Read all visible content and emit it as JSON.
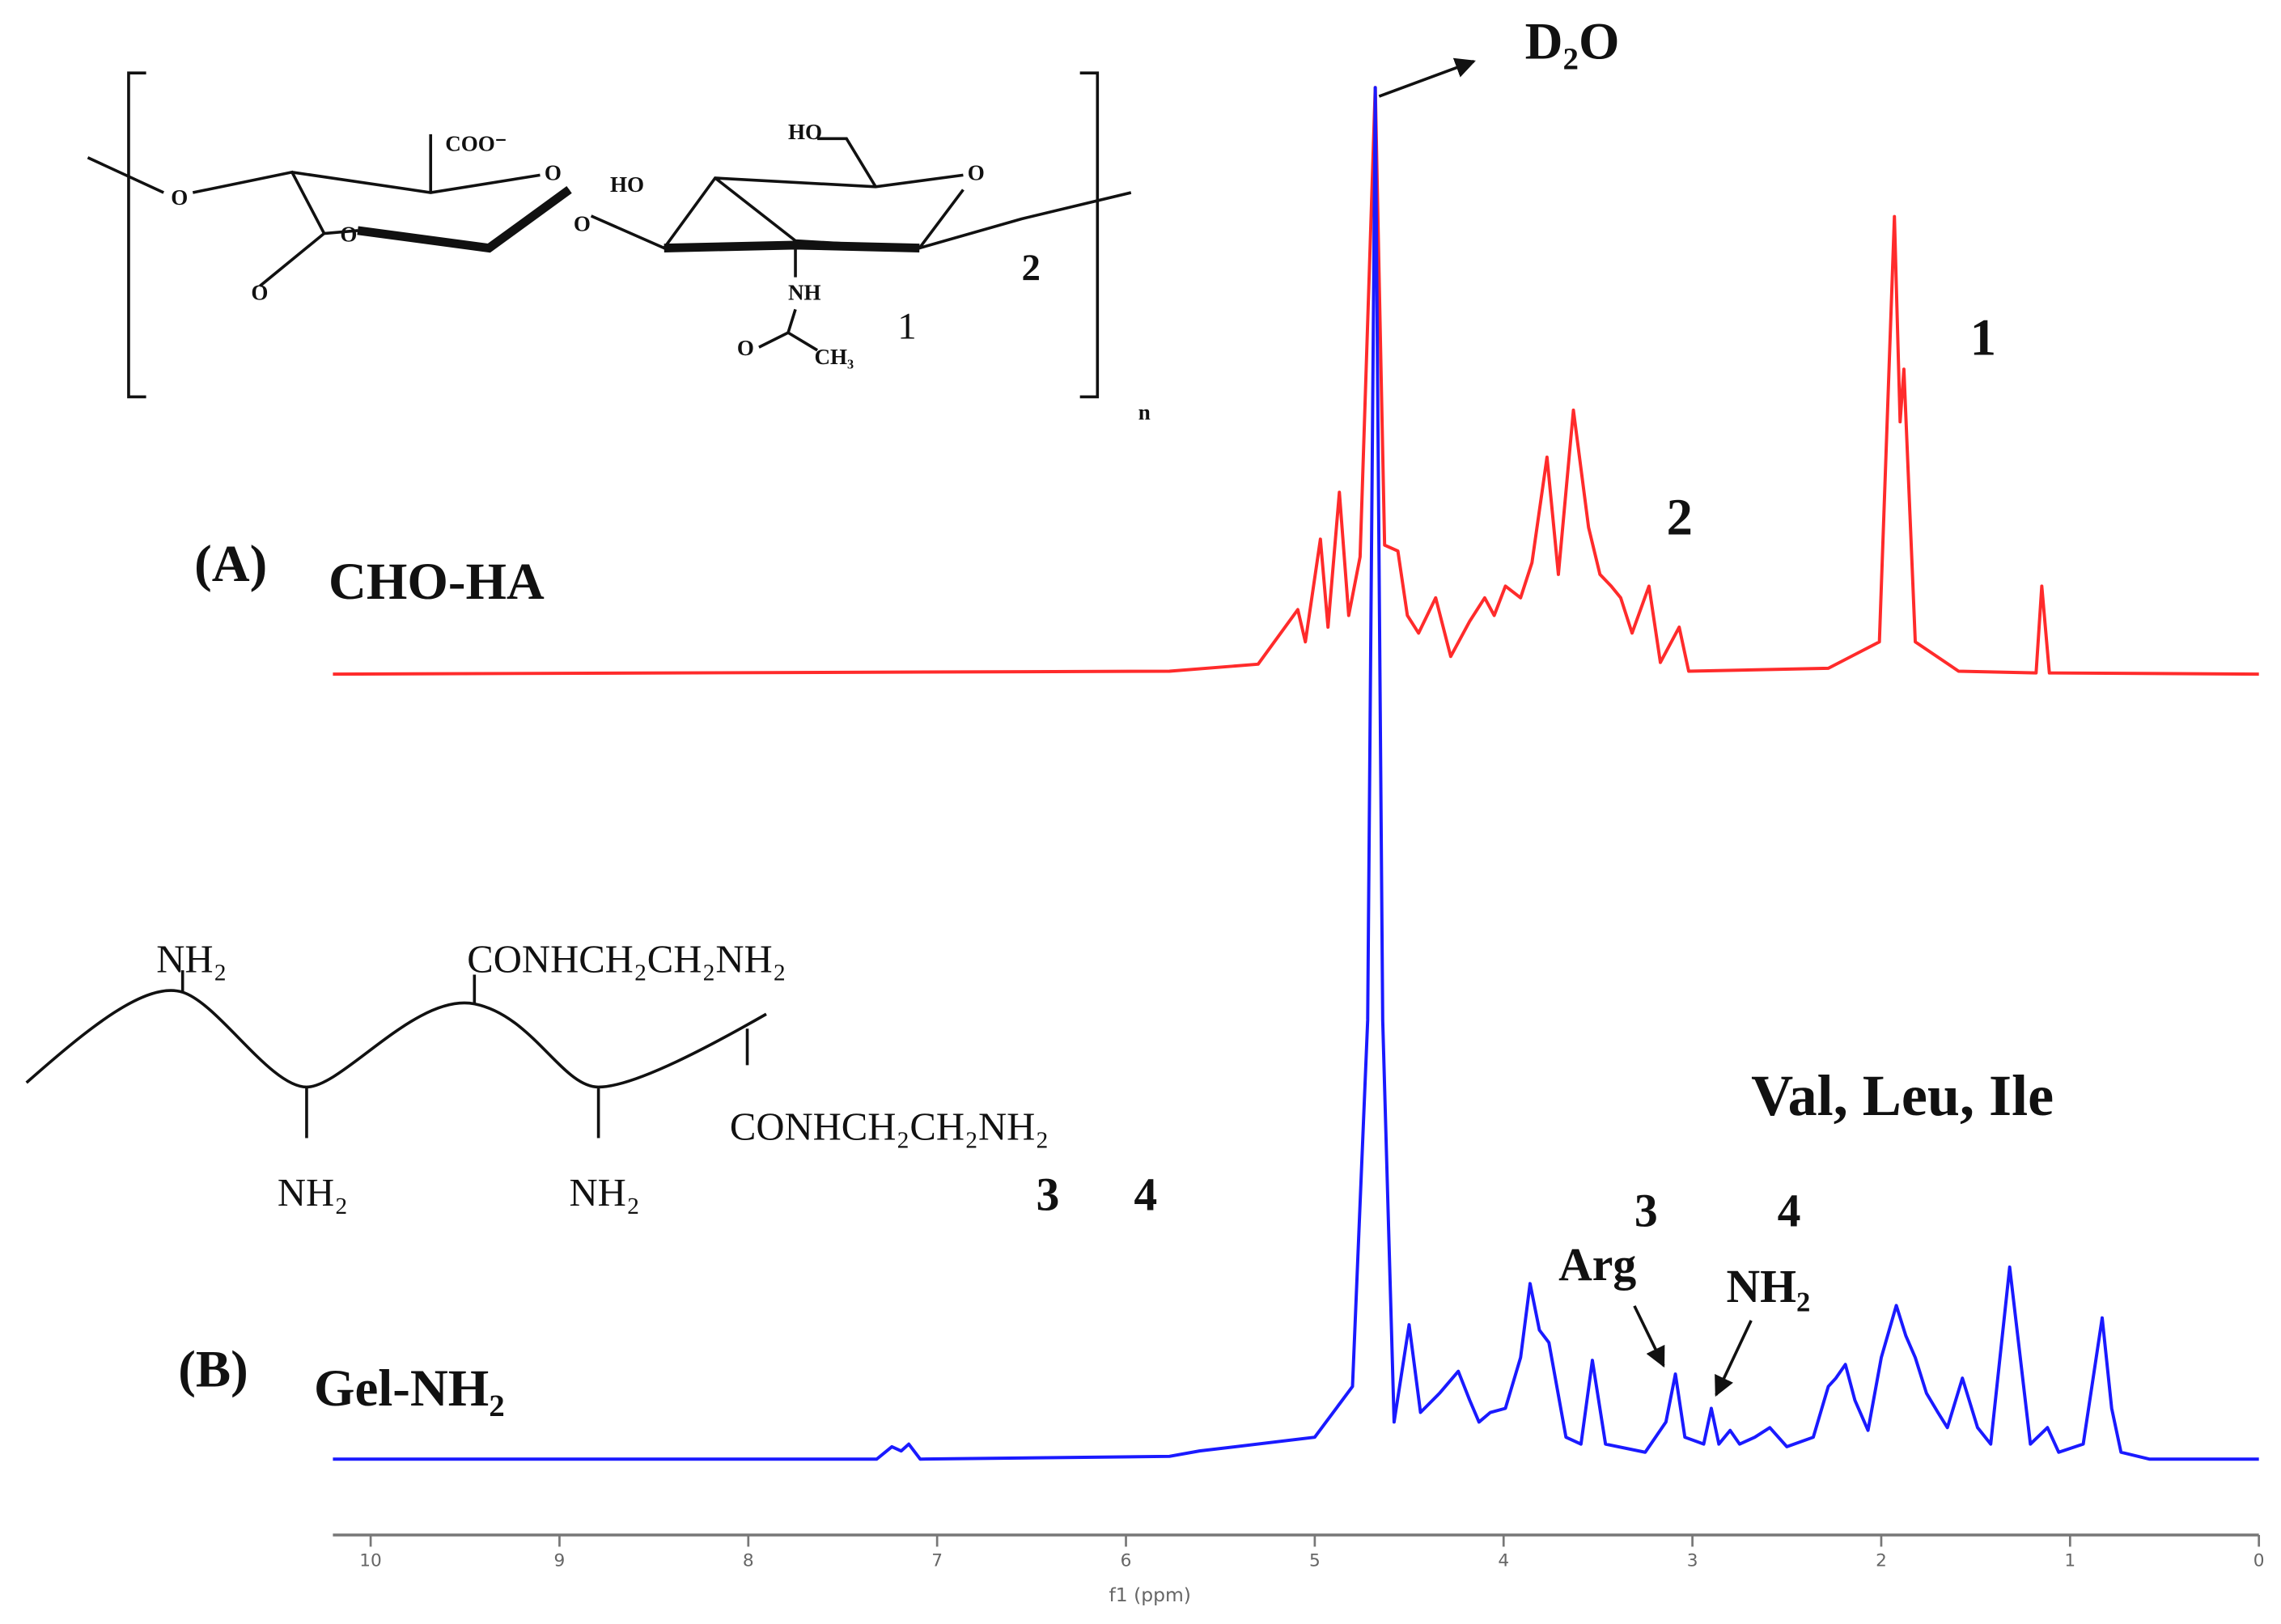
{
  "chart_data": {
    "type": "line",
    "xlabel": "f1 (ppm)",
    "xlim": [
      10.2,
      0
    ],
    "xticks": [
      10,
      9,
      8,
      7,
      6,
      5,
      4,
      3,
      2,
      1,
      0
    ],
    "ylim": [
      0,
      100
    ],
    "series": [
      {
        "name": "CHO-HA",
        "label": "(A)",
        "color": "#ff2b2b",
        "x": [
          10.2,
          5.77,
          5.3,
          5.09,
          5.05,
          4.97,
          4.93,
          4.87,
          4.82,
          4.76,
          4.68,
          4.63,
          4.56,
          4.51,
          4.45,
          4.36,
          4.28,
          4.18,
          4.1,
          4.05,
          3.99,
          3.91,
          3.85,
          3.77,
          3.71,
          3.63,
          3.55,
          3.49,
          3.43,
          3.38,
          3.32,
          3.23,
          3.17,
          3.07,
          3.02,
          2.28,
          2.01,
          1.93,
          1.9,
          1.88,
          1.82,
          1.59,
          1.18,
          1.15,
          1.11,
          0
        ],
        "values": [
          0,
          0.5,
          1.7,
          11,
          5.5,
          23,
          8,
          31,
          10,
          20,
          100,
          22,
          21,
          10,
          7,
          13,
          3,
          9,
          13,
          10,
          15,
          13,
          19,
          37,
          17,
          45,
          25,
          17,
          15,
          13,
          7,
          15,
          2,
          8,
          0.5,
          1,
          5.5,
          78,
          43,
          52,
          5.5,
          0.5,
          0.2,
          15,
          0.2,
          0
        ]
      },
      {
        "name": "Gel-NH₂",
        "label": "(B)",
        "color": "#1a1aff",
        "x": [
          10.2,
          7.32,
          7.24,
          7.19,
          7.15,
          7.09,
          5.77,
          5.61,
          5.0,
          4.8,
          4.72,
          4.68,
          4.64,
          4.58,
          4.5,
          4.44,
          4.34,
          4.24,
          4.18,
          4.13,
          4.07,
          3.99,
          3.91,
          3.86,
          3.81,
          3.76,
          3.67,
          3.59,
          3.53,
          3.46,
          3.25,
          3.14,
          3.09,
          3.04,
          2.94,
          2.9,
          2.86,
          2.8,
          2.75,
          2.67,
          2.59,
          2.5,
          2.36,
          2.28,
          2.24,
          2.19,
          2.14,
          2.07,
          2.0,
          1.92,
          1.87,
          1.82,
          1.76,
          1.7,
          1.65,
          1.57,
          1.49,
          1.42,
          1.32,
          1.21,
          1.12,
          1.06,
          0.93,
          0.83,
          0.78,
          0.73,
          0.58,
          0
        ],
        "values": [
          0,
          0,
          0.9,
          0.6,
          1.1,
          0,
          0.2,
          0.6,
          1.6,
          5.3,
          32,
          100,
          32,
          2.7,
          9.8,
          3.4,
          4.8,
          6.4,
          4.3,
          2.7,
          3.4,
          3.7,
          7.4,
          12.8,
          9.4,
          8.5,
          1.6,
          1.1,
          7.2,
          1.1,
          0.5,
          2.7,
          6.2,
          1.6,
          1.1,
          3.7,
          1.1,
          2.1,
          1.1,
          1.6,
          2.3,
          0.9,
          1.6,
          5.3,
          5.9,
          6.9,
          4.3,
          2.1,
          7.4,
          11.2,
          9.0,
          7.4,
          4.8,
          3.4,
          2.3,
          5.9,
          2.3,
          1.1,
          14.0,
          1.1,
          2.3,
          0.5,
          1.1,
          10.3,
          3.7,
          0.5,
          0,
          0
        ]
      }
    ],
    "annotations": [
      "D₂O",
      "1",
      "2",
      "Val, Leu, Ile",
      "3",
      "Arg",
      "4",
      "NH₂"
    ]
  },
  "structures": {
    "hyaluronate": [
      "COO⁻",
      "HO",
      "HO",
      "NH",
      "O",
      "CH₃",
      "1",
      "O",
      "O",
      "O",
      "O",
      "O",
      "O",
      "2",
      "n"
    ],
    "gelatin": [
      "NH₂",
      "CONHCH₂CH₂NH₂",
      "NH₂",
      "NH₂",
      "CONHCH₂CH₂NH₂",
      "3",
      "4"
    ]
  }
}
